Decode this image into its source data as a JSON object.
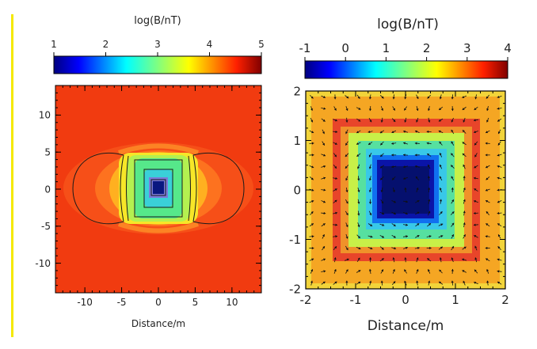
{
  "chart_data": [
    {
      "type": "heatmap",
      "colorbar": {
        "title": "log(B/nT)",
        "range": [
          1,
          5
        ],
        "ticks": [
          "1",
          "2",
          "3",
          "4",
          "5"
        ]
      },
      "xlabel": "Distance/m",
      "ylabel": "",
      "xlim": [
        -14,
        14
      ],
      "ylim": [
        -14,
        14
      ],
      "xticks": [
        "-10",
        "-5",
        "0",
        "5",
        "10"
      ],
      "yticks": [
        "10",
        "5",
        "0",
        "-5",
        "-10"
      ],
      "contours": true
    },
    {
      "type": "heatmap",
      "colorbar": {
        "title": "log(B/nT)",
        "range": [
          -1,
          4
        ],
        "ticks": [
          "-1",
          "0",
          "1",
          "2",
          "3",
          "4"
        ]
      },
      "xlabel": "Distance/m",
      "ylabel": "",
      "xlim": [
        -2,
        2
      ],
      "ylim": [
        -2,
        2
      ],
      "xticks": [
        "-2",
        "-1",
        "0",
        "1",
        "2"
      ],
      "yticks": [
        "2",
        "1",
        "0",
        "-1",
        "-2"
      ],
      "vectors": true
    }
  ],
  "colors": {
    "accent_bar": "#f5e900"
  }
}
